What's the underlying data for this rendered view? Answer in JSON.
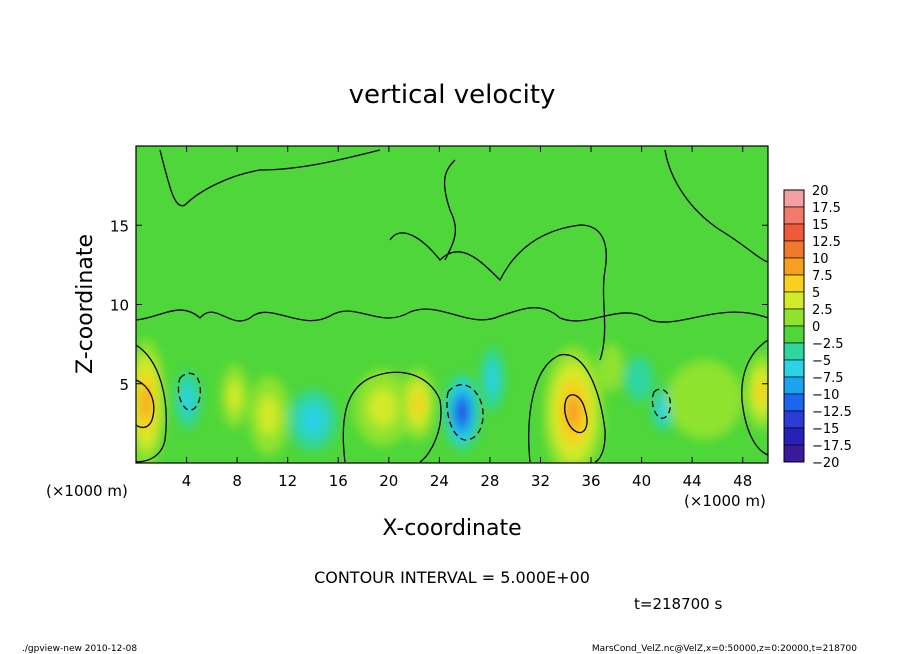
{
  "chart_data": {
    "type": "heatmap",
    "title": "vertical velocity",
    "xlabel": "X-coordinate",
    "ylabel": "Z-coordinate",
    "x_unit": "(×1000 m)",
    "z_unit": "(×1000 m)",
    "xlim": [
      0,
      50
    ],
    "ylim": [
      0,
      20
    ],
    "x_ticks": [
      4,
      8,
      12,
      16,
      20,
      24,
      28,
      32,
      36,
      40,
      44,
      48
    ],
    "y_ticks": [
      5,
      10,
      15
    ],
    "colorbar_levels": [
      20,
      17.5,
      15,
      12.5,
      10,
      7.5,
      5,
      2.5,
      0,
      -2.5,
      -5,
      -7.5,
      -10,
      -12.5,
      -15,
      -17.5,
      -20
    ],
    "colorbar_colors": [
      "#f5a0a0",
      "#f07b6b",
      "#ee5a3a",
      "#f0782a",
      "#f5a020",
      "#f7d11b",
      "#d2ea2a",
      "#8fe22e",
      "#4ed63a",
      "#2fd6a0",
      "#2cd2e6",
      "#1aa3ee",
      "#1a66ee",
      "#2a3bd6",
      "#2622b8",
      "#3a1a9a",
      "#6a2aa0"
    ],
    "contour_interval": "CONTOUR INTERVAL = 5.000E+00",
    "time_label": "t=218700 s",
    "cells": [
      {
        "x": 0.8,
        "z": 3.8,
        "rx": 1.5,
        "rz": 4.0,
        "w": 11
      },
      {
        "x": 7.8,
        "z": 4.2,
        "rx": 1.1,
        "rz": 2.0,
        "w": 5
      },
      {
        "x": 10.5,
        "z": 3.0,
        "rx": 1.6,
        "rz": 2.5,
        "w": 4
      },
      {
        "x": 4.1,
        "z": 4.0,
        "rx": 1.0,
        "rz": 1.8,
        "w": -4
      },
      {
        "x": 14.0,
        "z": 2.7,
        "rx": 1.9,
        "rz": 1.9,
        "w": -6
      },
      {
        "x": 19.5,
        "z": 3.5,
        "rx": 2.3,
        "rz": 2.4,
        "w": 5
      },
      {
        "x": 22.3,
        "z": 3.7,
        "rx": 1.4,
        "rz": 2.3,
        "w": 7
      },
      {
        "x": 25.8,
        "z": 3.2,
        "rx": 1.4,
        "rz": 2.4,
        "w": -12
      },
      {
        "x": 28.2,
        "z": 5.3,
        "rx": 0.9,
        "rz": 2.0,
        "w": -5
      },
      {
        "x": 34.6,
        "z": 3.2,
        "rx": 2.4,
        "rz": 4.2,
        "w": 11
      },
      {
        "x": 41.7,
        "z": 3.4,
        "rx": 0.9,
        "rz": 1.4,
        "w": -5
      },
      {
        "x": 37.6,
        "z": 6.0,
        "rx": 1.0,
        "rz": 1.5,
        "w": 3
      },
      {
        "x": 39.8,
        "z": 5.3,
        "rx": 1.1,
        "rz": 1.4,
        "w": -3
      },
      {
        "x": 49.5,
        "z": 4.5,
        "rx": 1.3,
        "rz": 2.4,
        "w": 7
      },
      {
        "x": 45.0,
        "z": 4.0,
        "rx": 3.0,
        "rz": 2.5,
        "w": 2
      }
    ]
  },
  "footer": {
    "left": "./gpview-new  2010-12-08",
    "right": "MarsCond_VelZ.nc@VelZ,x=0:50000,z=0:20000,t=218700"
  }
}
